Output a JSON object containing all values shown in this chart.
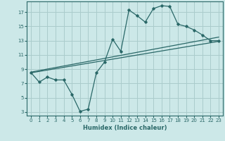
{
  "xlabel": "Humidex (Indice chaleur)",
  "bg_color": "#cce8e8",
  "grid_color": "#aacccc",
  "line_color": "#2a6868",
  "xlim": [
    -0.5,
    23.5
  ],
  "ylim": [
    2.5,
    18.5
  ],
  "xticks": [
    0,
    1,
    2,
    3,
    4,
    5,
    6,
    7,
    8,
    9,
    10,
    11,
    12,
    13,
    14,
    15,
    16,
    17,
    18,
    19,
    20,
    21,
    22,
    23
  ],
  "yticks": [
    3,
    5,
    7,
    9,
    11,
    13,
    15,
    17
  ],
  "zigzag_x": [
    0,
    1,
    2,
    3,
    4,
    5,
    6,
    7,
    8,
    9,
    10,
    11,
    12,
    13,
    14,
    15,
    16,
    17,
    18,
    19,
    20,
    21,
    22,
    23
  ],
  "zigzag_y": [
    8.5,
    7.2,
    7.9,
    7.5,
    7.5,
    5.5,
    3.1,
    3.4,
    8.5,
    10.0,
    13.2,
    11.5,
    17.3,
    16.5,
    15.6,
    17.5,
    17.9,
    17.8,
    15.3,
    15.0,
    14.5,
    13.8,
    13.0,
    13.0
  ],
  "line1_x": [
    0,
    23
  ],
  "line1_y": [
    8.5,
    12.9
  ],
  "line2_x": [
    0,
    23
  ],
  "line2_y": [
    8.6,
    13.5
  ],
  "line3_x": [
    0,
    23
  ],
  "line3_y": [
    8.7,
    12.9
  ]
}
